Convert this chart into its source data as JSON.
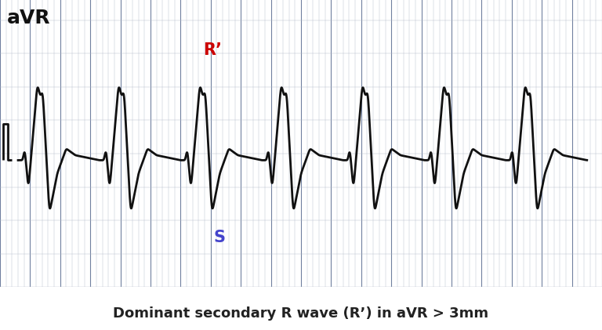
{
  "title": "aVR",
  "caption": "Dominant secondary R wave (R’) in aVR > 3mm",
  "r_prime_label": "R’",
  "s_label": "S",
  "r_prime_color": "#cc0000",
  "s_color": "#4444cc",
  "grid_minor_color": "#b0b8c8",
  "grid_major_color": "#7080a0",
  "bg_color": "#dde4ed",
  "ecg_color": "#111111",
  "ecg_linewidth": 2.0,
  "fig_bg_color": "#ffffff",
  "caption_fontsize": 13,
  "title_fontsize": 18
}
